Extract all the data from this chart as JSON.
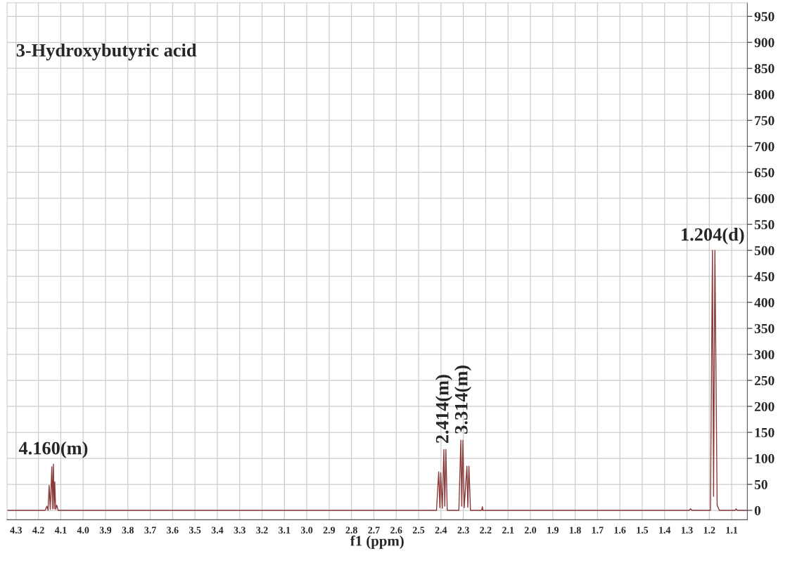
{
  "chart_data": {
    "type": "line",
    "title": "3-Hydroxybutyric acid",
    "xlabel": "f1 (ppm)",
    "x": [
      4.34,
      4.17,
      4.162,
      4.157,
      4.152,
      4.147,
      4.14,
      4.137,
      4.133,
      4.13,
      4.127,
      4.123,
      4.118,
      4.112,
      3.0,
      2.42,
      2.41,
      2.405,
      2.401,
      2.394,
      2.387,
      2.383,
      2.378,
      2.372,
      2.32,
      2.311,
      2.307,
      2.302,
      2.296,
      2.284,
      2.28,
      2.275,
      2.268,
      2.218,
      2.215,
      2.212,
      1.29,
      1.284,
      1.278,
      1.195,
      1.186,
      1.181,
      1.175,
      1.165,
      1.155,
      1.085,
      1.08,
      1.075,
      1.03
    ],
    "series": [
      {
        "color": "#8b3a3a",
        "values": [
          0,
          0,
          8,
          0,
          48,
          2,
          84,
          3,
          89,
          3,
          55,
          2,
          10,
          0,
          0,
          0,
          74,
          5,
          72,
          4,
          117,
          8,
          117,
          0,
          0,
          135,
          8,
          135,
          5,
          85,
          6,
          85,
          0,
          0,
          7,
          0,
          0,
          3,
          0,
          0,
          500,
          27,
          500,
          10,
          0,
          0,
          3,
          0,
          0
        ]
      }
    ],
    "annotations": [
      {
        "text": "4.160(m)",
        "x": 4.133,
        "y": 89
      },
      {
        "text": "2.414(m)",
        "x": 2.387,
        "y": 117
      },
      {
        "text": "3.314(m)",
        "x": 2.302,
        "y": 135
      },
      {
        "text": "1.204(d)",
        "x": 1.186,
        "y": 500
      }
    ],
    "xlim": [
      4.34,
      1.03
    ],
    "ylim": [
      -18,
      976
    ],
    "xticks": [
      4.3,
      4.2,
      4.1,
      {
        "value": 4.0,
        "label": "4.0"
      },
      3.9,
      3.8,
      3.7,
      3.6,
      3.5,
      3.4,
      3.3,
      3.2,
      3.1,
      {
        "value": 3.0,
        "label": "3.0"
      },
      2.9,
      2.8,
      2.7,
      2.6,
      2.5,
      2.4,
      2.3,
      2.2,
      2.1,
      {
        "value": 2.0,
        "label": "2.0"
      },
      1.9,
      1.8,
      1.7,
      1.6,
      1.5,
      1.4,
      1.3,
      1.2,
      1.1
    ],
    "yticks": [
      0,
      50,
      100,
      150,
      200,
      250,
      300,
      350,
      400,
      450,
      500,
      550,
      600,
      650,
      700,
      750,
      800,
      850,
      900,
      950
    ],
    "grid": true,
    "marker": "none",
    "line_style": "solid"
  }
}
